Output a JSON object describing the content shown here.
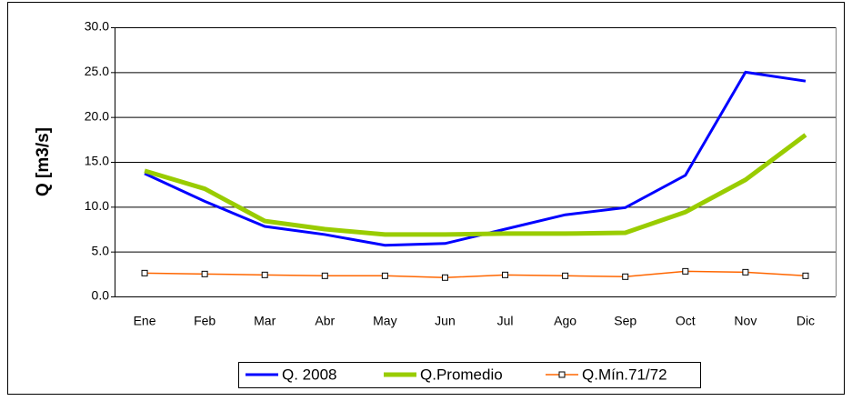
{
  "chart_data": {
    "type": "line",
    "y_label": "Q [m3/s]",
    "categories": [
      "Ene",
      "Feb",
      "Mar",
      "Abr",
      "May",
      "Jun",
      "Jul",
      "Ago",
      "Sep",
      "Oct",
      "Nov",
      "Dic"
    ],
    "series": [
      {
        "name": "Q. 2008",
        "color": "#0000ff",
        "values": [
          13.7,
          10.6,
          7.8,
          6.9,
          5.7,
          5.9,
          7.5,
          9.1,
          9.9,
          13.5,
          25.0,
          24.0
        ]
      },
      {
        "name": "Q.Promedio",
        "color": "#99cc00",
        "values": [
          14.0,
          12.0,
          8.4,
          7.5,
          6.9,
          6.9,
          7.0,
          7.0,
          7.1,
          9.4,
          13.0,
          18.0
        ]
      },
      {
        "name": "Q.Mín.71/72",
        "color": "#ff6600",
        "marker": "square",
        "values": [
          2.6,
          2.5,
          2.4,
          2.3,
          2.3,
          2.1,
          2.4,
          2.3,
          2.2,
          2.8,
          2.7,
          2.3
        ]
      }
    ],
    "ylim": [
      0,
      30
    ],
    "yticks": [
      {
        "value": 0,
        "label": "0.0"
      },
      {
        "value": 5,
        "label": "5.0"
      },
      {
        "value": 10,
        "label": "10.0"
      },
      {
        "value": 15,
        "label": "15.0"
      },
      {
        "value": 20,
        "label": "20.0"
      },
      {
        "value": 25,
        "label": "25.0"
      },
      {
        "value": 30,
        "label": "30.0"
      }
    ],
    "grid": true,
    "legend": "bottom"
  }
}
